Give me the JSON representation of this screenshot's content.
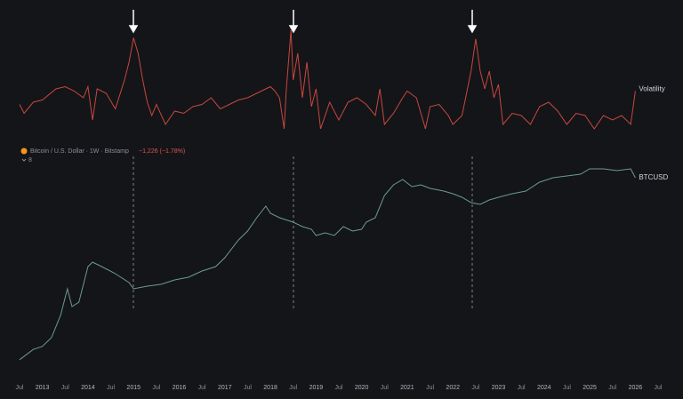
{
  "chart_data": [
    {
      "type": "line",
      "series": [
        {
          "name": "Volatility",
          "color": "#c9473d",
          "values": [
            30,
            22,
            32,
            34,
            44,
            46,
            42,
            36,
            46,
            16,
            44,
            40,
            26,
            52,
            68,
            90,
            76,
            52,
            32,
            20,
            30,
            12,
            24,
            22,
            28,
            30,
            36,
            26,
            30,
            34,
            36,
            40,
            44,
            46,
            42,
            36,
            8,
            44,
            97,
            52,
            76,
            36,
            68,
            28,
            44,
            8,
            32,
            16,
            32,
            36,
            30,
            20,
            44,
            12,
            22,
            36,
            42,
            36,
            8,
            28,
            30,
            20,
            12,
            20,
            60,
            89,
            60,
            44,
            60,
            36,
            48,
            12,
            22,
            20,
            12,
            28,
            32,
            24,
            12,
            22,
            20,
            8,
            20,
            16,
            20,
            12,
            42
          ]
        }
      ],
      "x": [
        2012.5,
        2012.6,
        2012.8,
        2013.0,
        2013.3,
        2013.5,
        2013.7,
        2013.9,
        2014.0,
        2014.1,
        2014.2,
        2014.4,
        2014.6,
        2014.8,
        2014.9,
        2015.0,
        2015.1,
        2015.2,
        2015.3,
        2015.4,
        2015.5,
        2015.7,
        2015.9,
        2016.1,
        2016.3,
        2016.5,
        2016.7,
        2016.9,
        2017.1,
        2017.3,
        2017.5,
        2017.7,
        2017.9,
        2018.0,
        2018.1,
        2018.2,
        2018.3,
        2018.35,
        2018.45,
        2018.5,
        2018.6,
        2018.7,
        2018.8,
        2018.9,
        2019.0,
        2019.1,
        2019.3,
        2019.5,
        2019.7,
        2019.9,
        2020.1,
        2020.3,
        2020.4,
        2020.5,
        2020.7,
        2020.9,
        2021.0,
        2021.2,
        2021.4,
        2021.5,
        2021.7,
        2021.9,
        2022.0,
        2022.2,
        2022.4,
        2022.5,
        2022.6,
        2022.7,
        2022.8,
        2022.9,
        2023.0,
        2023.1,
        2023.3,
        2023.5,
        2023.7,
        2023.9,
        2024.1,
        2024.3,
        2024.5,
        2024.7,
        2024.9,
        2025.1,
        2025.3,
        2025.5,
        2025.7,
        2025.9,
        2026.0
      ],
      "xlim": [
        2012.5,
        2026.5
      ],
      "ylim": [
        0,
        100
      ]
    },
    {
      "type": "line",
      "title": "Bitcoin / U.S. Dollar · 1W · Bitstamp",
      "change": "−1,226 (−1.78%)",
      "indicator_count": "8",
      "log_scale": true,
      "series": [
        {
          "name": "BTCUSD",
          "color": "#6f9a8e",
          "values": [
            1.7,
            3.1,
            3.7,
            6.2,
            23,
            107,
            38,
            49,
            393,
            509,
            393,
            259,
            154,
            107,
            125,
            139,
            180,
            211,
            303,
            393,
            660,
            1866,
            3135,
            6837,
            13430,
            8855,
            6837,
            5272,
            4065,
            3477,
            2420,
            2826,
            2420,
            4065,
            3135,
            3477,
            5272,
            6837,
            25060,
            46700,
            63800,
            42100,
            46700,
            37900,
            32460,
            27800,
            22600,
            16500,
            14900,
            19300,
            22600,
            27800,
            32460,
            54600,
            70800,
            78500,
            87100,
            118900,
            118900,
            107200,
            118900,
            70800
          ]
        }
      ],
      "x": [
        2012.5,
        2012.8,
        2013.0,
        2013.2,
        2013.4,
        2013.55,
        2013.65,
        2013.8,
        2014.0,
        2014.1,
        2014.3,
        2014.6,
        2014.9,
        2015.0,
        2015.3,
        2015.6,
        2015.9,
        2016.2,
        2016.5,
        2016.8,
        2017.0,
        2017.3,
        2017.5,
        2017.7,
        2017.9,
        2018.0,
        2018.2,
        2018.5,
        2018.7,
        2018.9,
        2019.0,
        2019.2,
        2019.4,
        2019.6,
        2019.8,
        2020.0,
        2020.1,
        2020.3,
        2020.5,
        2020.7,
        2020.9,
        2021.1,
        2021.3,
        2021.5,
        2021.8,
        2022.0,
        2022.2,
        2022.4,
        2022.6,
        2022.8,
        2023.0,
        2023.3,
        2023.6,
        2023.9,
        2024.2,
        2024.5,
        2024.8,
        2025.0,
        2025.3,
        2025.6,
        2025.9,
        2026.0
      ],
      "xlim": [
        2012.5,
        2026.5
      ],
      "ylim": [
        1,
        200000
      ],
      "xticks": [
        {
          "value": 2012.5,
          "label": "Jul"
        },
        2013,
        {
          "value": 2013.5,
          "label": "Jul"
        },
        2014,
        {
          "value": 2014.5,
          "label": "Jul"
        },
        2015,
        {
          "value": 2015.5,
          "label": "Jul"
        },
        2016,
        {
          "value": 2016.5,
          "label": "Jul"
        },
        2017,
        {
          "value": 2017.5,
          "label": "Jul"
        },
        2018,
        {
          "value": 2018.5,
          "label": "Jul"
        },
        2019,
        {
          "value": 2019.5,
          "label": "Jul"
        },
        2020,
        {
          "value": 2020.5,
          "label": "Jul"
        },
        2021,
        {
          "value": 2021.5,
          "label": "Jul"
        },
        2022,
        {
          "value": 2022.5,
          "label": "Jul"
        },
        2023,
        {
          "value": 2023.5,
          "label": "Jul"
        },
        2024,
        {
          "value": 2024.5,
          "label": "Jul"
        },
        2025,
        {
          "value": 2025.5,
          "label": "Jul"
        },
        2026,
        {
          "value": 2026.5,
          "label": "Jul"
        }
      ]
    }
  ]
}
